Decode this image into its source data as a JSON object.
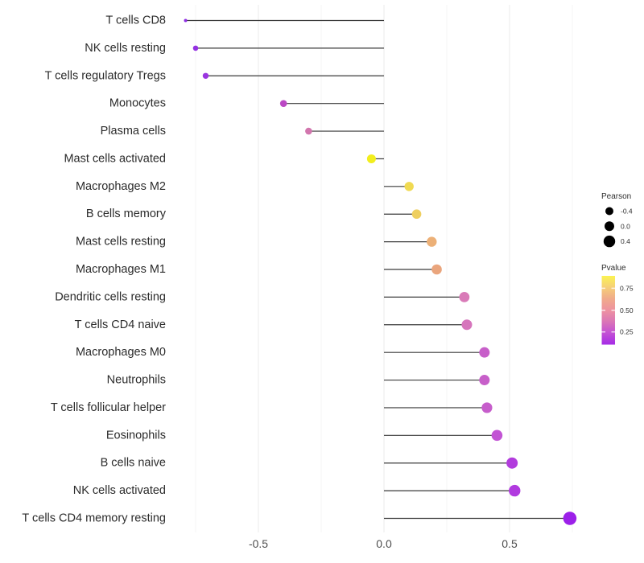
{
  "chart_data": {
    "type": "lollipop",
    "title": "",
    "xlabel": "",
    "ylabel": "",
    "x_ticks": [
      -0.5,
      0.0,
      0.5
    ],
    "x_tick_labels": [
      "-0.5",
      "0.0",
      "0.5"
    ],
    "xlim": [
      -0.843,
      0.798
    ],
    "major_gridlines": [
      -0.5,
      0.0,
      0.5
    ],
    "minor_gridlines": [
      -0.75,
      -0.25,
      0.25,
      0.75
    ],
    "grid": true,
    "baseline": 0,
    "legend_position": "right",
    "categories": [
      "T cells CD8",
      "NK cells resting",
      "T cells regulatory  Tregs",
      "Monocytes",
      "Plasma cells",
      "Mast cells activated",
      "Macrophages M2",
      "B cells memory",
      "Mast cells resting",
      "Macrophages M1",
      "Dendritic cells resting",
      "T cells CD4 naive",
      "Macrophages M0",
      "Neutrophils",
      "T cells follicular helper",
      "Eosinophils",
      "B cells naive",
      "NK cells activated",
      "T cells CD4 memory resting"
    ],
    "series": [
      {
        "name": "Pearson",
        "values": [
          -0.79,
          -0.75,
          -0.71,
          -0.4,
          -0.3,
          -0.05,
          0.1,
          0.13,
          0.19,
          0.21,
          0.32,
          0.33,
          0.4,
          0.4,
          0.41,
          0.45,
          0.51,
          0.52,
          0.74
        ]
      }
    ],
    "point_colors": [
      "#8e2ce3",
      "#9431e2",
      "#9a36e0",
      "#bb48c4",
      "#d276ae",
      "#f2ee1e",
      "#f0da52",
      "#eecf60",
      "#ecb077",
      "#eaa57d",
      "#d97bb8",
      "#d675bc",
      "#c75fc9",
      "#c75fc9",
      "#c65dcb",
      "#c254d4",
      "#b23cdd",
      "#b13adf",
      "#9c20e9"
    ],
    "point_radii": [
      2.0,
      3.3,
      3.7,
      4.3,
      4.3,
      5.5,
      5.7,
      5.8,
      6.2,
      6.3,
      6.4,
      6.5,
      6.5,
      6.5,
      6.6,
      6.8,
      7.0,
      7.2,
      8.3
    ]
  },
  "legend": {
    "pearson": {
      "title": "Pearson",
      "dot_color": "#000000",
      "items": [
        {
          "label": "-0.4",
          "r": 5.0
        },
        {
          "label": "0.0",
          "r": 6.0
        },
        {
          "label": "0.4",
          "r": 7.2
        }
      ]
    },
    "pvalue": {
      "title": "Pvalue",
      "tick_labels": [
        "0.75",
        "0.50",
        "0.25"
      ],
      "gradient_top_to_bottom": [
        "#fbf351",
        "#f6d276",
        "#f0ab8b",
        "#ee92a0",
        "#dc79b4",
        "#c553d3",
        "#a52be6"
      ]
    }
  },
  "colors": {
    "background": "#ffffff",
    "grid_major": "#ebebeb",
    "grid_minor": "#f4f4f4",
    "stick": "#3a3a3a",
    "axis_text": "#4d4d4d",
    "label_text": "#2b2b2b",
    "legend_text": "#303030"
  }
}
